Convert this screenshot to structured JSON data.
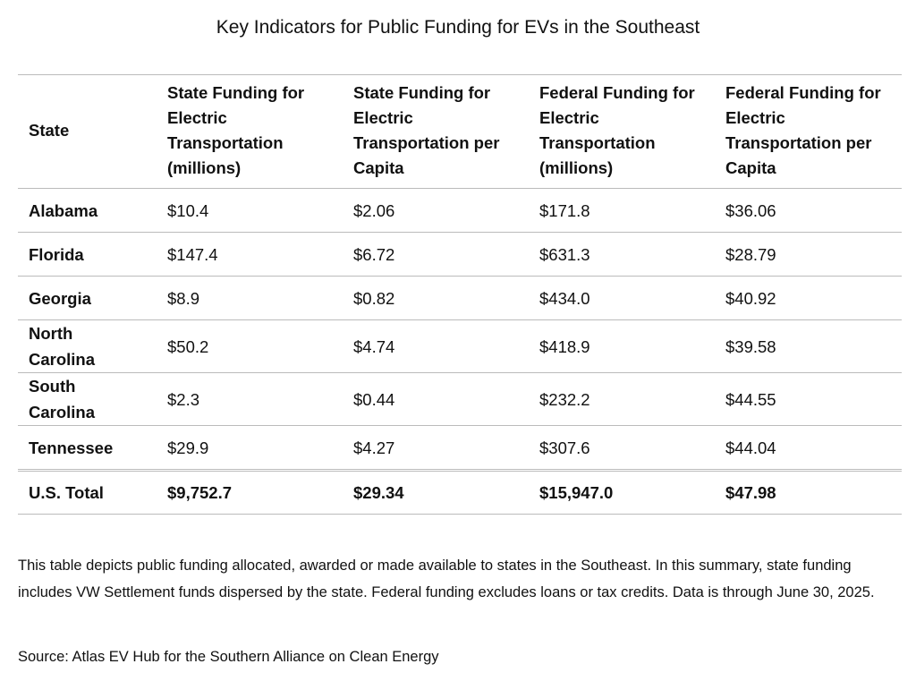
{
  "title": "Key Indicators for Public Funding for EVs in the Southeast",
  "table": {
    "header": [
      "State",
      "State Funding for Electric Transportation (millions)",
      "State Funding for Electric Transportation per Capita",
      "Federal Funding for Electric Transportation (millions)",
      "Federal Funding for Electric Transportation per Capita"
    ],
    "rows": [
      [
        "Alabama",
        "$10.4",
        "$2.06",
        "$171.8",
        "$36.06"
      ],
      [
        "Florida",
        "$147.4",
        "$6.72",
        "$631.3",
        "$28.79"
      ],
      [
        "Georgia",
        "$8.9",
        "$0.82",
        "$434.0",
        "$40.92"
      ],
      [
        "North Carolina",
        "$50.2",
        "$4.74",
        "$418.9",
        "$39.58"
      ],
      [
        "South Carolina",
        "$2.3",
        "$0.44",
        "$232.2",
        "$44.55"
      ],
      [
        "Tennessee",
        "$29.9",
        "$4.27",
        "$307.6",
        "$44.04"
      ]
    ],
    "total": [
      "U.S. Total",
      "$9,752.7",
      "$29.34",
      "$15,947.0",
      "$47.98"
    ]
  },
  "note": "This table depicts public funding allocated, awarded or made available to states in the Southeast. In this summary, state funding includes VW Settlement funds dispersed by the state. Federal funding excludes loans or tax credits. Data is through June 30, 2025.",
  "source": "Source: Atlas EV Hub for the Southern Alliance on Clean Energy"
}
